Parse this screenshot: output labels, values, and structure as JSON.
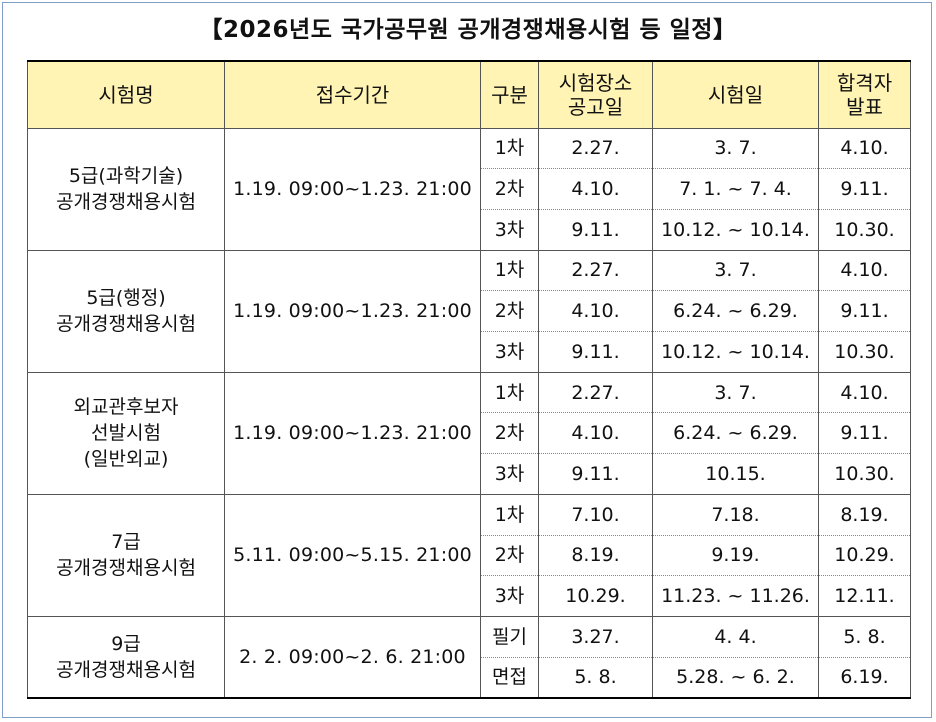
{
  "title": "【2026년도 국가공무원 공개경쟁채용시험 등 일정】",
  "headers": {
    "exam": "시험명",
    "period": "접수기간",
    "stage": "구분",
    "venue": [
      "시험장소",
      "공고일"
    ],
    "date": "시험일",
    "result": [
      "합격자",
      "발표"
    ]
  },
  "exams": [
    {
      "name": [
        "5급(과학기술)",
        "공개경쟁채용시험"
      ],
      "period": "1.19. 09:00~1.23. 21:00",
      "rows": [
        {
          "stage": "1차",
          "venue": "2.27.",
          "date": "3. 7.",
          "result": "4.10."
        },
        {
          "stage": "2차",
          "venue": "4.10.",
          "date": "7. 1. ~ 7. 4.",
          "result": "9.11."
        },
        {
          "stage": "3차",
          "venue": "9.11.",
          "date": "10.12. ~ 10.14.",
          "result": "10.30."
        }
      ]
    },
    {
      "name": [
        "5급(행정)",
        "공개경쟁채용시험"
      ],
      "period": "1.19. 09:00~1.23. 21:00",
      "rows": [
        {
          "stage": "1차",
          "venue": "2.27.",
          "date": "3. 7.",
          "result": "4.10."
        },
        {
          "stage": "2차",
          "venue": "4.10.",
          "date": "6.24. ~ 6.29.",
          "result": "9.11."
        },
        {
          "stage": "3차",
          "venue": "9.11.",
          "date": "10.12. ~ 10.14.",
          "result": "10.30."
        }
      ]
    },
    {
      "name": [
        "외교관후보자",
        "선발시험",
        "(일반외교)"
      ],
      "period": "1.19. 09:00~1.23. 21:00",
      "rows": [
        {
          "stage": "1차",
          "venue": "2.27.",
          "date": "3. 7.",
          "result": "4.10."
        },
        {
          "stage": "2차",
          "venue": "4.10.",
          "date": "6.24. ~ 6.29.",
          "result": "9.11."
        },
        {
          "stage": "3차",
          "venue": "9.11.",
          "date": "10.15.",
          "result": "10.30."
        }
      ]
    },
    {
      "name": [
        "7급",
        "공개경쟁채용시험"
      ],
      "period": "5.11. 09:00~5.15. 21:00",
      "rows": [
        {
          "stage": "1차",
          "venue": "7.10.",
          "date": "7.18.",
          "result": "8.19."
        },
        {
          "stage": "2차",
          "venue": "8.19.",
          "date": "9.19.",
          "result": "10.29."
        },
        {
          "stage": "3차",
          "venue": "10.29.",
          "date": "11.23. ~ 11.26.",
          "result": "12.11."
        }
      ]
    },
    {
      "name": [
        "9급",
        "공개경쟁채용시험"
      ],
      "period": "2. 2. 09:00~2. 6. 21:00",
      "rows": [
        {
          "stage": "필기",
          "venue": "3.27.",
          "date": "4. 4.",
          "result": "5. 8."
        },
        {
          "stage": "면접",
          "venue": "5. 8.",
          "date": "5.28. ~ 6. 2.",
          "result": "6.19."
        }
      ]
    }
  ]
}
